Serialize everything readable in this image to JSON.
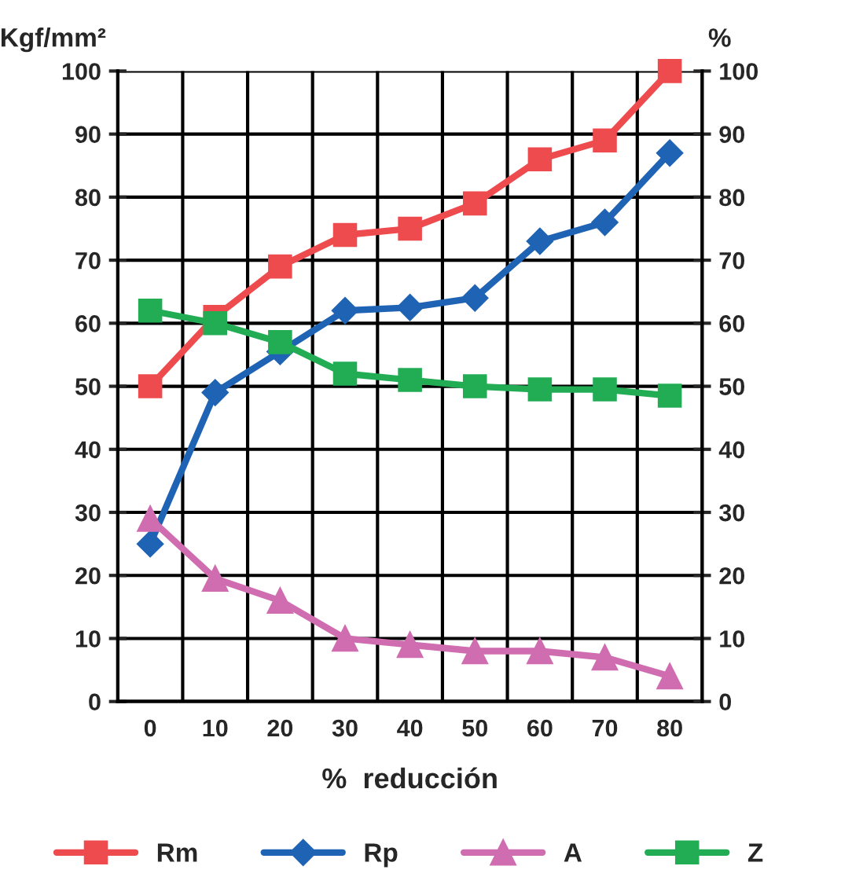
{
  "chart_data": {
    "type": "line",
    "xlabel": "%  reducción",
    "ylabel": "Kgf/mm²",
    "y2label": "%",
    "categories": [
      "0",
      "10",
      "20",
      "30",
      "40",
      "50",
      "60",
      "70",
      "80"
    ],
    "series": [
      {
        "name": "Rm",
        "color": "#ee4b4f",
        "marker": "square",
        "values": [
          50,
          61,
          69,
          74,
          75,
          79,
          86,
          89,
          100
        ]
      },
      {
        "name": "Rp",
        "color": "#1f63b4",
        "marker": "diamond",
        "values": [
          25,
          49,
          55.5,
          62,
          62.5,
          64,
          73,
          76,
          87
        ]
      },
      {
        "name": "A",
        "color": "#cf6db0",
        "marker": "triangle",
        "values": [
          29,
          19.5,
          16,
          10,
          9,
          8,
          8,
          7,
          4
        ]
      },
      {
        "name": "Z",
        "color": "#22ad55",
        "marker": "square",
        "values": [
          62,
          60,
          57,
          52,
          51,
          50,
          49.5,
          49.5,
          48.5
        ]
      }
    ],
    "ylim": [
      0,
      100
    ],
    "yticks": [
      0,
      10,
      20,
      30,
      40,
      50,
      60,
      70,
      80,
      90,
      100
    ],
    "y2lim": [
      0,
      100
    ],
    "y2ticks": [
      0,
      10,
      20,
      30,
      40,
      50,
      60,
      70,
      80,
      90,
      100
    ],
    "grid": true,
    "legend": "bottom",
    "line_style": "solid"
  }
}
